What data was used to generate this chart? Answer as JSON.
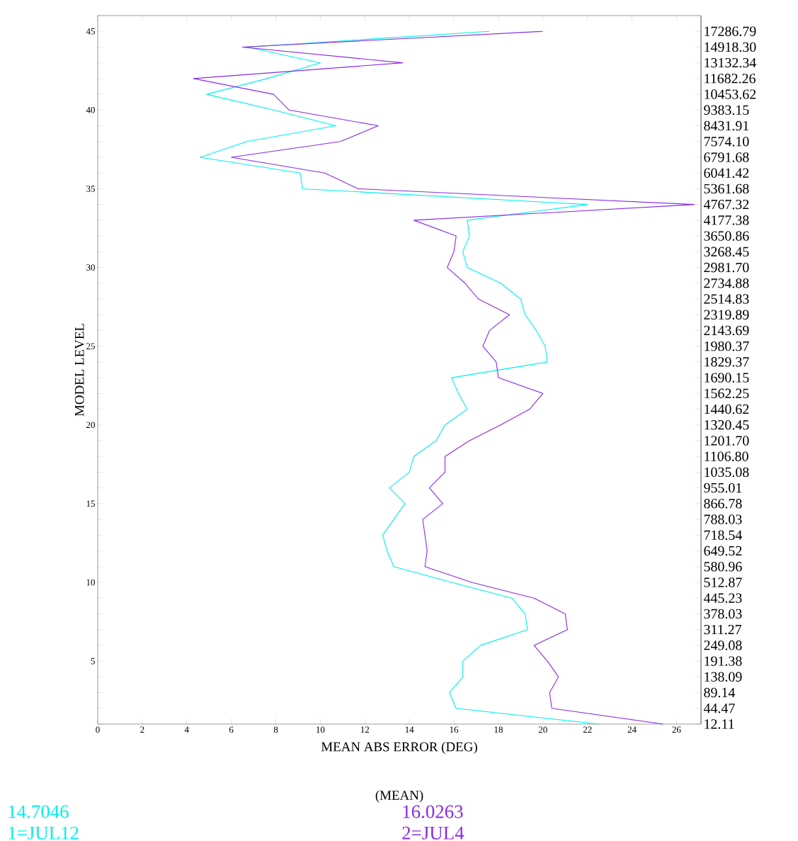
{
  "chart_data": {
    "type": "line",
    "orientation": "horizontal",
    "xlabel": "MEAN ABS ERROR (DEG)",
    "ylabel": "MODEL LEVEL",
    "annotations": [
      "(MEAN)",
      "14.7046",
      "16.0263"
    ],
    "x": [
      1,
      2,
      3,
      4,
      5,
      6,
      7,
      8,
      9,
      10,
      11,
      12,
      13,
      14,
      15,
      16,
      17,
      18,
      19,
      20,
      21,
      22,
      23,
      24,
      25,
      26,
      27,
      28,
      29,
      30,
      31,
      32,
      33,
      34,
      35,
      36,
      37,
      38,
      39,
      40,
      41,
      42,
      43,
      44,
      45
    ],
    "series": [
      {
        "name": "1=JUL12",
        "color": "#00eeee",
        "values": [
          22.5,
          16.1,
          15.8,
          16.4,
          16.4,
          17.2,
          19.3,
          19.2,
          18.6,
          15.9,
          13.3,
          13.0,
          12.8,
          13.3,
          13.8,
          13.1,
          14.0,
          14.2,
          15.2,
          15.6,
          16.6,
          16.2,
          15.9,
          20.2,
          20.1,
          19.7,
          19.2,
          19.0,
          18.1,
          16.6,
          16.4,
          16.7,
          16.6,
          22.0,
          9.2,
          9.1,
          4.6,
          6.7,
          10.7,
          7.9,
          4.9,
          7.6,
          10.0,
          6.7,
          17.6
        ]
      },
      {
        "name": "2=JUL4",
        "color": "#8a2be2",
        "values": [
          25.4,
          20.4,
          20.3,
          20.7,
          20.2,
          19.6,
          21.1,
          21.0,
          19.6,
          16.8,
          14.7,
          14.8,
          14.7,
          14.6,
          15.5,
          14.9,
          15.6,
          15.6,
          16.7,
          18.1,
          19.4,
          20.0,
          18.0,
          17.9,
          17.3,
          17.6,
          18.5,
          17.1,
          16.5,
          15.7,
          16.0,
          16.1,
          14.2,
          26.8,
          11.7,
          10.2,
          6.0,
          10.9,
          12.6,
          8.6,
          7.9,
          4.3,
          13.7,
          6.5,
          20.0
        ]
      }
    ],
    "xlim": [
      0,
      27.1
    ],
    "xticks": [
      0,
      2,
      4,
      6,
      8,
      10,
      12,
      14,
      16,
      18,
      20,
      22,
      24,
      26
    ],
    "ylim": [
      1,
      46
    ],
    "yticks": [
      {
        "value": 1,
        "label": null
      },
      {
        "value": 2,
        "label": null
      },
      {
        "value": 3,
        "label": null
      },
      {
        "value": 4,
        "label": null
      },
      5,
      {
        "value": 6,
        "label": null
      },
      {
        "value": 7,
        "label": null
      },
      {
        "value": 8,
        "label": null
      },
      {
        "value": 9,
        "label": null
      },
      10,
      {
        "value": 11,
        "label": null
      },
      {
        "value": 12,
        "label": null
      },
      {
        "value": 13,
        "label": null
      },
      {
        "value": 14,
        "label": null
      },
      15,
      {
        "value": 16,
        "label": null
      },
      {
        "value": 17,
        "label": null
      },
      {
        "value": 18,
        "label": null
      },
      {
        "value": 19,
        "label": null
      },
      20,
      {
        "value": 21,
        "label": null
      },
      {
        "value": 22,
        "label": null
      },
      {
        "value": 23,
        "label": null
      },
      {
        "value": 24,
        "label": null
      },
      25,
      {
        "value": 26,
        "label": null
      },
      {
        "value": 27,
        "label": null
      },
      {
        "value": 28,
        "label": null
      },
      {
        "value": 29,
        "label": null
      },
      30,
      {
        "value": 31,
        "label": null
      },
      {
        "value": 32,
        "label": null
      },
      {
        "value": 33,
        "label": null
      },
      {
        "value": 34,
        "label": null
      },
      35,
      {
        "value": 36,
        "label": null
      },
      {
        "value": 37,
        "label": null
      },
      {
        "value": 38,
        "label": null
      },
      {
        "value": 39,
        "label": null
      },
      40,
      {
        "value": 41,
        "label": null
      },
      {
        "value": 42,
        "label": null
      },
      {
        "value": 43,
        "label": null
      },
      {
        "value": 44,
        "label": null
      },
      45
    ],
    "y2_categories": [
      "17286.79",
      "14918.30",
      "13132.34",
      "11682.26",
      "10453.62",
      "9383.15",
      "8431.91",
      "7574.10",
      "6791.68",
      "6041.42",
      "5361.68",
      "4767.32",
      "4177.38",
      "3650.86",
      "3268.45",
      "2981.70",
      "2734.88",
      "2514.83",
      "2319.89",
      "2143.69",
      "1980.37",
      "1829.37",
      "1690.15",
      "1562.25",
      "1440.62",
      "1320.45",
      "1201.70",
      "1106.80",
      "1035.08",
      "955.01",
      "866.78",
      "788.03",
      "718.54",
      "649.52",
      "580.96",
      "512.87",
      "445.23",
      "378.03",
      "311.27",
      "249.08",
      "191.38",
      "138.09",
      "89.14",
      "44.47",
      "12.11"
    ],
    "legend": "bottom",
    "line_style": "solid",
    "grid": false
  }
}
